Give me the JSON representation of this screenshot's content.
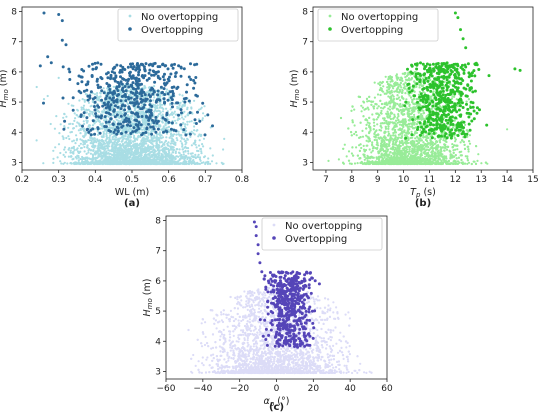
{
  "chart_data": [
    {
      "panel_label": "(a)",
      "type": "scatter",
      "xlabel": "WL (m)",
      "ylabel_main": "H",
      "ylabel_sub": "mo",
      "ylabel_unit": "(m)",
      "xlim": [
        0.2,
        0.8
      ],
      "ylim": [
        2.75,
        8.15
      ],
      "xticks": [
        0.2,
        0.3,
        0.4,
        0.5,
        0.6,
        0.7,
        0.8
      ],
      "xtick_labels": [
        "0.2",
        "0.3",
        "0.4",
        "0.5",
        "0.6",
        "0.7",
        "0.8"
      ],
      "yticks": [
        3,
        4,
        5,
        6,
        7,
        8
      ],
      "ytick_labels": [
        "3",
        "4",
        "5",
        "6",
        "7",
        "8"
      ],
      "legend_position": "top-right",
      "series": [
        {
          "name": "No overtopping",
          "color": "#a8dde4",
          "marker_size": 1.1,
          "dense_region": {
            "x_range": [
              0.23,
              0.78
            ],
            "y_range": [
              2.95,
              5.6
            ],
            "count": 3200
          },
          "points": [
            [
              0.24,
              5.5
            ],
            [
              0.27,
              5.2
            ],
            [
              0.3,
              5.8
            ],
            [
              0.26,
              5.1
            ]
          ]
        },
        {
          "name": "Overtopping",
          "color": "#2c6a9a",
          "marker_size": 1.5,
          "dense_region": {
            "x_range": [
              0.25,
              0.77
            ],
            "y_range": [
              3.9,
              6.3
            ],
            "count": 520
          },
          "points": [
            [
              0.26,
              7.95
            ],
            [
              0.3,
              7.9
            ],
            [
              0.31,
              7.7
            ],
            [
              0.31,
              7.05
            ],
            [
              0.32,
              6.9
            ],
            [
              0.27,
              6.5
            ],
            [
              0.25,
              6.2
            ],
            [
              0.28,
              6.3
            ],
            [
              0.33,
              6.0
            ]
          ]
        }
      ]
    },
    {
      "panel_label": "(b)",
      "type": "scatter",
      "xlabel_main": "T",
      "xlabel_sub": "p",
      "xlabel_unit": "(s)",
      "ylabel_main": "H",
      "ylabel_sub": "mo",
      "ylabel_unit": "(m)",
      "xlim": [
        6.5,
        15
      ],
      "ylim": [
        2.75,
        8.15
      ],
      "xticks": [
        7,
        8,
        9,
        10,
        11,
        12,
        13,
        14,
        15
      ],
      "xtick_labels": [
        "7",
        "8",
        "9",
        "10",
        "11",
        "12",
        "13",
        "14",
        "15"
      ],
      "yticks": [
        3,
        4,
        5,
        6,
        7,
        8
      ],
      "ytick_labels": [
        "3",
        "4",
        "5",
        "6",
        "7",
        "8"
      ],
      "legend_position": "top-left",
      "series": [
        {
          "name": "No overtopping",
          "color": "#98ec98",
          "marker_size": 1.1,
          "dense_region": {
            "x_range": [
              7.0,
              13.6
            ],
            "y_range": [
              2.95,
              6.0
            ],
            "count": 3200
          },
          "points": [
            [
              7.1,
              3.05
            ],
            [
              7.5,
              3.1
            ],
            [
              14.0,
              4.1
            ]
          ]
        },
        {
          "name": "Overtopping",
          "color": "#2cc22c",
          "marker_size": 1.5,
          "dense_region": {
            "x_range": [
              9.6,
              13.6
            ],
            "y_range": [
              3.8,
              6.3
            ],
            "count": 520
          },
          "points": [
            [
              12.0,
              7.95
            ],
            [
              12.1,
              7.8
            ],
            [
              12.2,
              7.4
            ],
            [
              12.3,
              7.1
            ],
            [
              12.4,
              6.8
            ],
            [
              14.5,
              6.05
            ],
            [
              14.3,
              6.1
            ]
          ]
        }
      ]
    },
    {
      "panel_label": "(c)",
      "type": "scatter",
      "xlabel_main": "α",
      "xlabel_sub": "p",
      "xlabel_unit": "(°)",
      "ylabel_main": "H",
      "ylabel_sub": "mo",
      "ylabel_unit": "(m)",
      "xlim": [
        -60,
        60
      ],
      "ylim": [
        2.75,
        8.15
      ],
      "xticks": [
        -60,
        -40,
        -20,
        0,
        20,
        40,
        60
      ],
      "xtick_labels": [
        "−60",
        "−40",
        "−20",
        "0",
        "20",
        "40",
        "60"
      ],
      "yticks": [
        3,
        4,
        5,
        6,
        7,
        8
      ],
      "ytick_labels": [
        "3",
        "4",
        "5",
        "6",
        "7",
        "8"
      ],
      "legend_position": "top-right",
      "series": [
        {
          "name": "No overtopping",
          "color": "#dcdcf7",
          "marker_size": 1.1,
          "dense_region": {
            "x_range": [
              -58,
              58
            ],
            "y_range": [
              2.95,
              5.8
            ],
            "count": 3200
          },
          "points": [
            [
              -12,
              5.6
            ],
            [
              10,
              6.0
            ]
          ]
        },
        {
          "name": "Overtopping",
          "color": "#5545b8",
          "marker_size": 1.5,
          "dense_region": {
            "x_range": [
              -12,
              26
            ],
            "y_range": [
              3.8,
              6.3
            ],
            "count": 520
          },
          "points": [
            [
              -12,
              7.95
            ],
            [
              -11,
              7.8
            ],
            [
              -11,
              7.5
            ],
            [
              -10,
              7.2
            ],
            [
              -10,
              6.9
            ],
            [
              -9,
              6.6
            ],
            [
              -8,
              6.3
            ]
          ]
        }
      ]
    }
  ]
}
